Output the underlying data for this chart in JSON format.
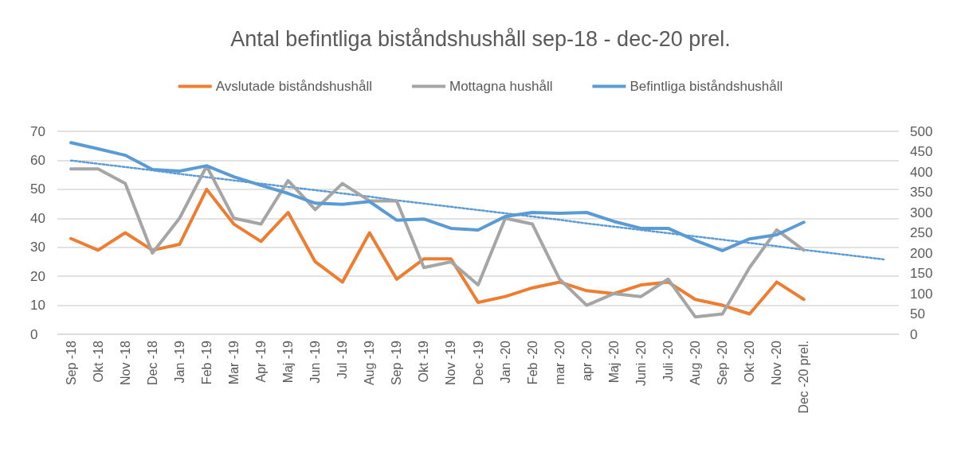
{
  "chart_data": {
    "type": "line",
    "title": "Antal befintliga biståndshushåll sep-18 - dec-20 prel.",
    "categories": [
      "Sep -18",
      "Okt -18",
      "Nov -18",
      "Dec -18",
      "Jan -19",
      "Feb -19",
      "Mar -19",
      "Apr -19",
      "Maj -19",
      "Jun -19",
      "Jul -19",
      "Aug -19",
      "Sep -19",
      "Okt -19",
      "Nov -19",
      "Dec -19",
      "Jan -20",
      "Feb -20",
      "mar -20",
      "apr -20",
      "Maj -20",
      "Juni -20",
      "Juli -20",
      "Aug -20",
      "Sep -20",
      "Okt -20",
      "Nov -20",
      "Dec -20 prel.",
      null,
      null,
      null
    ],
    "series": [
      {
        "name": "Avslutade biståndshushåll",
        "color": "#ed7d31",
        "values": [
          33,
          29,
          35,
          29,
          31,
          50,
          38,
          32,
          42,
          25,
          18,
          35,
          19,
          26,
          26,
          11,
          13,
          16,
          18,
          15,
          14,
          17,
          18,
          12,
          10,
          7,
          18,
          12,
          null,
          null,
          null
        ]
      },
      {
        "name": "Mottagna hushåll",
        "color": "#a5a5a5",
        "values": [
          57,
          57,
          52,
          28,
          40,
          58,
          40,
          38,
          53,
          43,
          52,
          46,
          46,
          23,
          25,
          17,
          40,
          38,
          19,
          10,
          14,
          13,
          19,
          6,
          7,
          23,
          36,
          29,
          null,
          null,
          null
        ]
      },
      {
        "name": "Befintliga biståndshushåll",
        "color": "#5b9bd5",
        "axis": "y2",
        "values": [
          472,
          457,
          441,
          406,
          402,
          415,
          388,
          367,
          347,
          323,
          320,
          327,
          281,
          284,
          261,
          257,
          290,
          300,
          298,
          300,
          278,
          261,
          261,
          231,
          206,
          235,
          245,
          276,
          null,
          null,
          null
        ]
      },
      {
        "type": "line",
        "color": "#5b9bd5",
        "axis": "y2",
        "line_style": "dotted",
        "values": [
          428,
          420,
          412,
          404,
          395,
          387,
          379,
          371,
          363,
          355,
          347,
          339,
          330,
          322,
          314,
          306,
          298,
          290,
          282,
          273,
          265,
          257,
          249,
          241,
          233,
          225,
          217,
          208,
          200,
          192,
          184
        ]
      }
    ],
    "ylim": [
      0,
      70
    ],
    "yticks": [
      0,
      10,
      20,
      30,
      40,
      50,
      60,
      70
    ],
    "y2lim": [
      0,
      500
    ],
    "y2ticks": [
      0,
      50,
      100,
      150,
      200,
      250,
      300,
      350,
      400,
      450,
      500
    ],
    "grid": "y",
    "legend": "top",
    "marker": "none",
    "line_style": "solid"
  }
}
